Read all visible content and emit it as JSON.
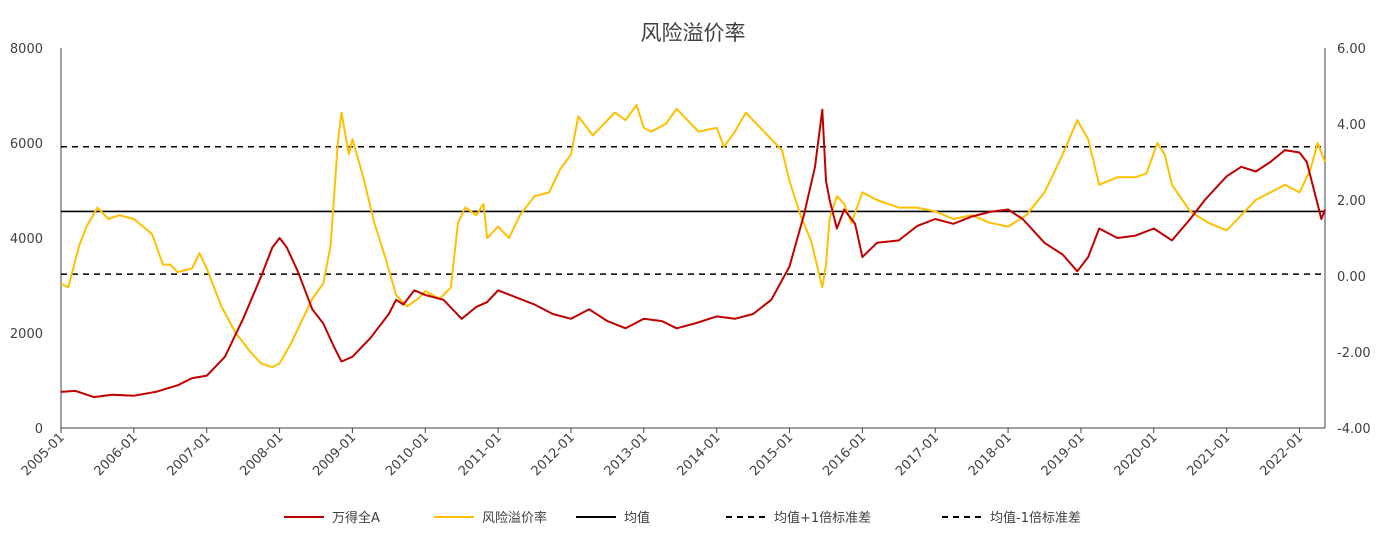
{
  "chart_data": {
    "type": "line",
    "title": "风险溢价率",
    "x_labels": [
      "2005-01",
      "2006-01",
      "2007-01",
      "2008-01",
      "2009-01",
      "2010-01",
      "2011-01",
      "2012-01",
      "2013-01",
      "2014-01",
      "2015-01",
      "2016-01",
      "2017-01",
      "2018-01",
      "2019-01",
      "2020-01",
      "2021-01",
      "2022-01"
    ],
    "y_left": {
      "min": 0,
      "max": 8000,
      "ticks": [
        "0",
        "2000",
        "4000",
        "6000",
        "8000"
      ]
    },
    "y_right": {
      "min": -4.0,
      "max": 6.0,
      "ticks": [
        "-4.00",
        "-2.00",
        "0.00",
        "2.00",
        "4.00",
        "6.00"
      ]
    },
    "legend_placement": "bottom",
    "series": [
      {
        "name": "万得全A",
        "axis": "left",
        "color": "#c00000",
        "style": "solid",
        "points": [
          [
            2005.0,
            760
          ],
          [
            2005.2,
            780
          ],
          [
            2005.45,
            650
          ],
          [
            2005.7,
            700
          ],
          [
            2006.0,
            680
          ],
          [
            2006.3,
            760
          ],
          [
            2006.6,
            900
          ],
          [
            2006.8,
            1050
          ],
          [
            2007.0,
            1100
          ],
          [
            2007.25,
            1500
          ],
          [
            2007.5,
            2300
          ],
          [
            2007.75,
            3200
          ],
          [
            2007.9,
            3800
          ],
          [
            2008.0,
            4000
          ],
          [
            2008.1,
            3800
          ],
          [
            2008.25,
            3300
          ],
          [
            2008.45,
            2500
          ],
          [
            2008.6,
            2200
          ],
          [
            2008.75,
            1700
          ],
          [
            2008.85,
            1400
          ],
          [
            2009.0,
            1500
          ],
          [
            2009.25,
            1900
          ],
          [
            2009.5,
            2400
          ],
          [
            2009.6,
            2700
          ],
          [
            2009.7,
            2600
          ],
          [
            2009.85,
            2900
          ],
          [
            2010.0,
            2800
          ],
          [
            2010.25,
            2700
          ],
          [
            2010.5,
            2300
          ],
          [
            2010.7,
            2550
          ],
          [
            2010.85,
            2650
          ],
          [
            2011.0,
            2900
          ],
          [
            2011.25,
            2750
          ],
          [
            2011.5,
            2600
          ],
          [
            2011.75,
            2400
          ],
          [
            2012.0,
            2300
          ],
          [
            2012.25,
            2500
          ],
          [
            2012.5,
            2250
          ],
          [
            2012.75,
            2100
          ],
          [
            2013.0,
            2300
          ],
          [
            2013.25,
            2250
          ],
          [
            2013.45,
            2100
          ],
          [
            2013.7,
            2200
          ],
          [
            2014.0,
            2350
          ],
          [
            2014.25,
            2300
          ],
          [
            2014.5,
            2400
          ],
          [
            2014.75,
            2700
          ],
          [
            2015.0,
            3400
          ],
          [
            2015.2,
            4500
          ],
          [
            2015.35,
            5500
          ],
          [
            2015.45,
            6700
          ],
          [
            2015.5,
            5200
          ],
          [
            2015.55,
            4800
          ],
          [
            2015.65,
            4200
          ],
          [
            2015.75,
            4600
          ],
          [
            2015.9,
            4300
          ],
          [
            2016.0,
            3600
          ],
          [
            2016.2,
            3900
          ],
          [
            2016.5,
            3950
          ],
          [
            2016.75,
            4250
          ],
          [
            2017.0,
            4400
          ],
          [
            2017.25,
            4300
          ],
          [
            2017.5,
            4450
          ],
          [
            2017.75,
            4550
          ],
          [
            2018.0,
            4600
          ],
          [
            2018.2,
            4400
          ],
          [
            2018.5,
            3900
          ],
          [
            2018.75,
            3650
          ],
          [
            2018.95,
            3300
          ],
          [
            2019.1,
            3600
          ],
          [
            2019.25,
            4200
          ],
          [
            2019.5,
            4000
          ],
          [
            2019.75,
            4050
          ],
          [
            2020.0,
            4200
          ],
          [
            2020.25,
            3950
          ],
          [
            2020.5,
            4400
          ],
          [
            2020.7,
            4800
          ],
          [
            2021.0,
            5300
          ],
          [
            2021.2,
            5500
          ],
          [
            2021.4,
            5400
          ],
          [
            2021.6,
            5600
          ],
          [
            2021.8,
            5850
          ],
          [
            2022.0,
            5800
          ],
          [
            2022.1,
            5600
          ],
          [
            2022.2,
            5000
          ],
          [
            2022.3,
            4400
          ],
          [
            2022.35,
            4600
          ]
        ]
      },
      {
        "name": "风险溢价率",
        "axis": "right",
        "color": "#ffc000",
        "style": "solid",
        "points": [
          [
            2005.0,
            -0.2
          ],
          [
            2005.1,
            -0.3
          ],
          [
            2005.25,
            0.8
          ],
          [
            2005.35,
            1.3
          ],
          [
            2005.5,
            1.8
          ],
          [
            2005.65,
            1.5
          ],
          [
            2005.8,
            1.6
          ],
          [
            2006.0,
            1.5
          ],
          [
            2006.25,
            1.1
          ],
          [
            2006.4,
            0.3
          ],
          [
            2006.5,
            0.3
          ],
          [
            2006.6,
            0.1
          ],
          [
            2006.8,
            0.2
          ],
          [
            2006.9,
            0.6
          ],
          [
            2007.0,
            0.2
          ],
          [
            2007.2,
            -0.8
          ],
          [
            2007.4,
            -1.5
          ],
          [
            2007.6,
            -2.0
          ],
          [
            2007.75,
            -2.3
          ],
          [
            2007.9,
            -2.4
          ],
          [
            2008.0,
            -2.3
          ],
          [
            2008.15,
            -1.8
          ],
          [
            2008.3,
            -1.2
          ],
          [
            2008.45,
            -0.6
          ],
          [
            2008.6,
            -0.2
          ],
          [
            2008.7,
            0.8
          ],
          [
            2008.8,
            3.5
          ],
          [
            2008.85,
            4.3
          ],
          [
            2008.95,
            3.2
          ],
          [
            2009.0,
            3.6
          ],
          [
            2009.15,
            2.6
          ],
          [
            2009.3,
            1.4
          ],
          [
            2009.45,
            0.5
          ],
          [
            2009.6,
            -0.5
          ],
          [
            2009.75,
            -0.8
          ],
          [
            2009.9,
            -0.6
          ],
          [
            2010.0,
            -0.4
          ],
          [
            2010.2,
            -0.6
          ],
          [
            2010.35,
            -0.3
          ],
          [
            2010.45,
            1.4
          ],
          [
            2010.55,
            1.8
          ],
          [
            2010.7,
            1.6
          ],
          [
            2010.8,
            1.9
          ],
          [
            2010.85,
            1.0
          ],
          [
            2011.0,
            1.3
          ],
          [
            2011.15,
            1.0
          ],
          [
            2011.3,
            1.6
          ],
          [
            2011.5,
            2.1
          ],
          [
            2011.7,
            2.2
          ],
          [
            2011.85,
            2.8
          ],
          [
            2012.0,
            3.2
          ],
          [
            2012.1,
            4.2
          ],
          [
            2012.3,
            3.7
          ],
          [
            2012.45,
            4.0
          ],
          [
            2012.6,
            4.3
          ],
          [
            2012.75,
            4.1
          ],
          [
            2012.9,
            4.5
          ],
          [
            2013.0,
            3.9
          ],
          [
            2013.1,
            3.8
          ],
          [
            2013.3,
            4.0
          ],
          [
            2013.45,
            4.4
          ],
          [
            2013.6,
            4.1
          ],
          [
            2013.75,
            3.8
          ],
          [
            2014.0,
            3.9
          ],
          [
            2014.1,
            3.4
          ],
          [
            2014.25,
            3.8
          ],
          [
            2014.4,
            4.3
          ],
          [
            2014.5,
            4.1
          ],
          [
            2014.65,
            3.8
          ],
          [
            2014.8,
            3.5
          ],
          [
            2014.9,
            3.3
          ],
          [
            2015.0,
            2.5
          ],
          [
            2015.15,
            1.6
          ],
          [
            2015.3,
            0.9
          ],
          [
            2015.45,
            -0.3
          ],
          [
            2015.5,
            0.3
          ],
          [
            2015.55,
            1.5
          ],
          [
            2015.65,
            2.1
          ],
          [
            2015.75,
            1.9
          ],
          [
            2015.85,
            1.4
          ],
          [
            2016.0,
            2.2
          ],
          [
            2016.2,
            2.0
          ],
          [
            2016.5,
            1.8
          ],
          [
            2016.75,
            1.8
          ],
          [
            2017.0,
            1.7
          ],
          [
            2017.25,
            1.5
          ],
          [
            2017.5,
            1.6
          ],
          [
            2017.75,
            1.4
          ],
          [
            2018.0,
            1.3
          ],
          [
            2018.25,
            1.6
          ],
          [
            2018.5,
            2.2
          ],
          [
            2018.75,
            3.2
          ],
          [
            2018.95,
            4.1
          ],
          [
            2019.1,
            3.6
          ],
          [
            2019.25,
            2.4
          ],
          [
            2019.5,
            2.6
          ],
          [
            2019.75,
            2.6
          ],
          [
            2019.9,
            2.7
          ],
          [
            2020.05,
            3.5
          ],
          [
            2020.15,
            3.2
          ],
          [
            2020.25,
            2.4
          ],
          [
            2020.5,
            1.7
          ],
          [
            2020.75,
            1.4
          ],
          [
            2021.0,
            1.2
          ],
          [
            2021.2,
            1.6
          ],
          [
            2021.4,
            2.0
          ],
          [
            2021.6,
            2.2
          ],
          [
            2021.8,
            2.4
          ],
          [
            2022.0,
            2.2
          ],
          [
            2022.15,
            2.8
          ],
          [
            2022.25,
            3.5
          ],
          [
            2022.35,
            3.0
          ]
        ]
      },
      {
        "name": "均值",
        "axis": "right",
        "color": "#000000",
        "style": "solid",
        "points": [
          [
            2005.0,
            1.7
          ],
          [
            2022.35,
            1.7
          ]
        ]
      },
      {
        "name": "均值+1倍标准差",
        "axis": "right",
        "color": "#000000",
        "style": "dashed",
        "points": [
          [
            2005.0,
            3.4
          ],
          [
            2022.35,
            3.4
          ]
        ]
      },
      {
        "name": "均值-1倍标准差",
        "axis": "right",
        "color": "#000000",
        "style": "dashed",
        "points": [
          [
            2005.0,
            0.05
          ],
          [
            2022.35,
            0.05
          ]
        ]
      }
    ]
  }
}
